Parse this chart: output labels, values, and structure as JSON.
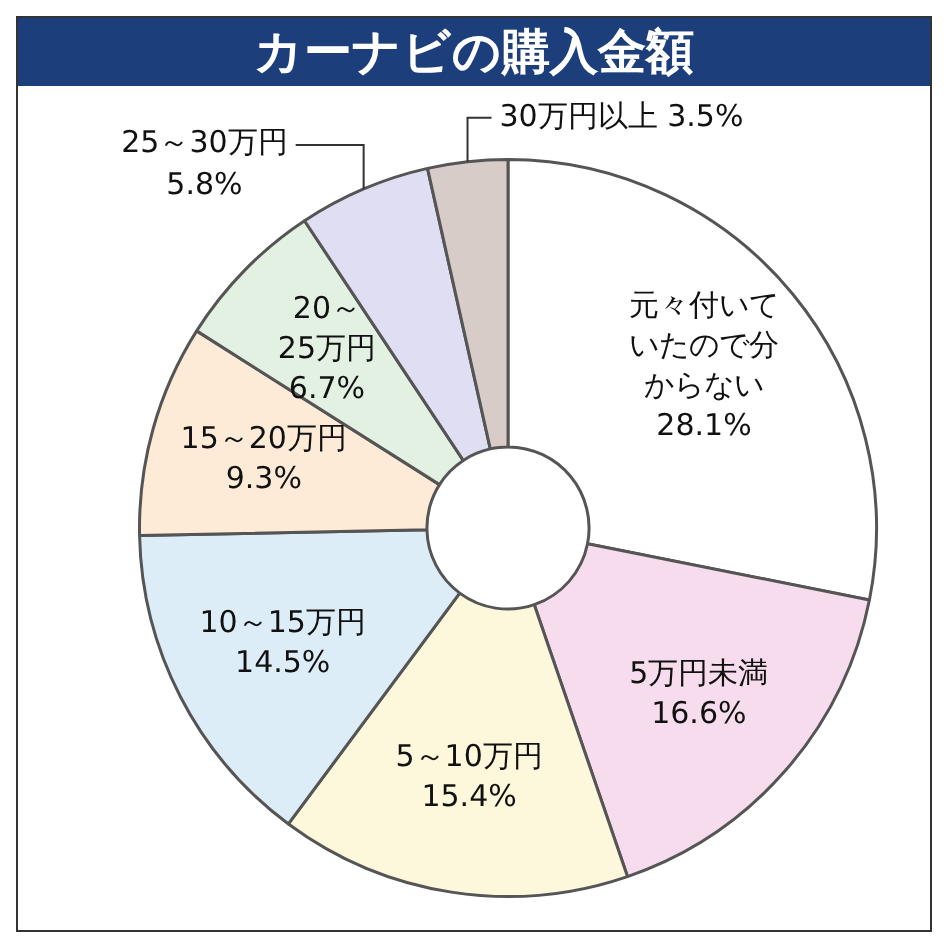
{
  "chart_data": {
    "type": "donut",
    "title": "カーナビの購入金額",
    "categories": [
      "元々付いていたので分からない",
      "5万円未満",
      "5～10万円",
      "10～15万円",
      "15～20万円",
      "20～25万円",
      "25～30万円",
      "30万円以上"
    ],
    "values": [
      28.1,
      16.6,
      15.4,
      14.5,
      9.3,
      6.7,
      5.8,
      3.5
    ],
    "value_labels": [
      "28.1%",
      "16.6%",
      "15.4%",
      "14.5%",
      "9.3%",
      "6.7%",
      "5.8%",
      "3.5%"
    ],
    "colors": [
      "#ffffff",
      "#f6dcec",
      "#fdf8dc",
      "#dcedf8",
      "#fdebd8",
      "#e2f1e2",
      "#e0def2",
      "#d8ccc8"
    ]
  }
}
